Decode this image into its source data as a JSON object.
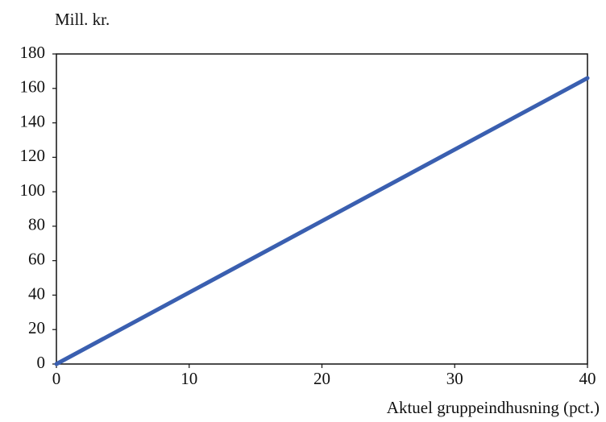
{
  "chart_data": {
    "type": "line",
    "y_label": "Mill. kr.",
    "x_label": "Aktuel gruppeindhusning (pct.)",
    "x": [
      0,
      40
    ],
    "series": [
      {
        "name": null,
        "color": "#3a5fb0",
        "values": [
          0,
          166
        ]
      }
    ],
    "xlim": [
      0,
      40
    ],
    "xticks": [
      0,
      10,
      20,
      30,
      40
    ],
    "ylim": [
      0,
      180
    ],
    "yticks": [
      0,
      20,
      40,
      60,
      80,
      100,
      120,
      140,
      160,
      180
    ],
    "grid": false
  }
}
